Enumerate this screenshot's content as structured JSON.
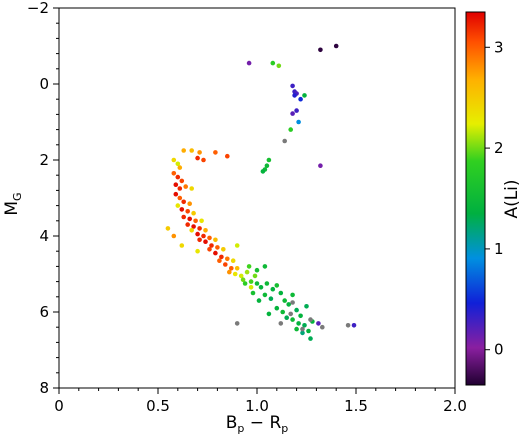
{
  "chart_data": {
    "type": "scatter",
    "xlabel_main": "B",
    "xlabel_sub1": "p",
    "xlabel_mid": " − R",
    "xlabel_sub2": "p",
    "ylabel_main": "M",
    "ylabel_sub": "G",
    "colorbar_label": "A(Li)",
    "xlim": [
      0,
      2.0
    ],
    "ylim": [
      8,
      -2
    ],
    "y_inverted": true,
    "x_ticks": [
      0,
      0.5,
      1.0,
      1.5,
      2.0
    ],
    "x_tick_labels": [
      "0",
      "0.5",
      "1.0",
      "1.5",
      "2.0"
    ],
    "y_ticks": [
      -2,
      0,
      2,
      4,
      6,
      8
    ],
    "y_tick_labels": [
      "−2",
      "0",
      "2",
      "4",
      "6",
      "8"
    ],
    "colorbar_range": [
      -0.35,
      3.35
    ],
    "colorbar_ticks": [
      0,
      1,
      2,
      3
    ],
    "colorbar_tick_labels": [
      "0",
      "1",
      "2",
      "3"
    ],
    "colormap": "rainbow (purple → blue → green → yellow → orange → red)",
    "no_li_color": "#7a7a7a",
    "grid": false,
    "points": [
      {
        "x": 1.4,
        "y": -1.0,
        "li": -0.3
      },
      {
        "x": 1.32,
        "y": -0.9,
        "li": -0.3
      },
      {
        "x": 0.96,
        "y": -0.55,
        "li": 0.1
      },
      {
        "x": 1.08,
        "y": -0.55,
        "li": 1.8
      },
      {
        "x": 1.11,
        "y": -0.48,
        "li": 2.0
      },
      {
        "x": 1.18,
        "y": 0.05,
        "li": 0.3
      },
      {
        "x": 1.19,
        "y": 0.2,
        "li": 0.3
      },
      {
        "x": 1.2,
        "y": 0.25,
        "li": 0.25
      },
      {
        "x": 1.19,
        "y": 0.3,
        "li": 0.4
      },
      {
        "x": 1.22,
        "y": 0.4,
        "li": 0.5
      },
      {
        "x": 1.24,
        "y": 0.3,
        "li": 1.4
      },
      {
        "x": 1.2,
        "y": 0.7,
        "li": 0.3
      },
      {
        "x": 1.18,
        "y": 0.78,
        "li": 0.2
      },
      {
        "x": 1.21,
        "y": 1.0,
        "li": 0.9
      },
      {
        "x": 1.17,
        "y": 1.2,
        "li": 1.8
      },
      {
        "x": 1.14,
        "y": 1.5,
        "li": null
      },
      {
        "x": 1.32,
        "y": 2.15,
        "li": 0.1
      },
      {
        "x": 1.06,
        "y": 2.0,
        "li": 1.6
      },
      {
        "x": 1.05,
        "y": 2.15,
        "li": 1.5
      },
      {
        "x": 1.04,
        "y": 2.25,
        "li": 1.5
      },
      {
        "x": 1.03,
        "y": 2.3,
        "li": 1.4
      },
      {
        "x": 0.63,
        "y": 1.75,
        "li": 2.7
      },
      {
        "x": 0.67,
        "y": 1.75,
        "li": 2.6
      },
      {
        "x": 0.71,
        "y": 1.8,
        "li": 2.8
      },
      {
        "x": 0.79,
        "y": 1.8,
        "li": 3.0
      },
      {
        "x": 0.85,
        "y": 1.9,
        "li": 3.1
      },
      {
        "x": 0.7,
        "y": 1.95,
        "li": 3.2
      },
      {
        "x": 0.73,
        "y": 2.0,
        "li": 3.1
      },
      {
        "x": 0.58,
        "y": 2.0,
        "li": 2.4
      },
      {
        "x": 0.6,
        "y": 2.1,
        "li": 2.2
      },
      {
        "x": 0.61,
        "y": 2.2,
        "li": 2.7
      },
      {
        "x": 0.58,
        "y": 2.35,
        "li": 3.0
      },
      {
        "x": 0.6,
        "y": 2.45,
        "li": 3.2
      },
      {
        "x": 0.62,
        "y": 2.55,
        "li": 3.1
      },
      {
        "x": 0.59,
        "y": 2.65,
        "li": 3.3
      },
      {
        "x": 0.61,
        "y": 2.75,
        "li": 3.2
      },
      {
        "x": 0.64,
        "y": 2.7,
        "li": 2.9
      },
      {
        "x": 0.67,
        "y": 2.75,
        "li": 2.4
      },
      {
        "x": 0.59,
        "y": 2.9,
        "li": 3.3
      },
      {
        "x": 0.61,
        "y": 3.0,
        "li": 3.0
      },
      {
        "x": 0.63,
        "y": 3.1,
        "li": 3.2
      },
      {
        "x": 0.66,
        "y": 3.15,
        "li": 2.8
      },
      {
        "x": 0.6,
        "y": 3.2,
        "li": 2.3
      },
      {
        "x": 0.62,
        "y": 3.3,
        "li": 3.3
      },
      {
        "x": 0.65,
        "y": 3.35,
        "li": 3.1
      },
      {
        "x": 0.68,
        "y": 3.4,
        "li": 2.5
      },
      {
        "x": 0.63,
        "y": 3.5,
        "li": 3.2
      },
      {
        "x": 0.66,
        "y": 3.55,
        "li": 3.3
      },
      {
        "x": 0.69,
        "y": 3.6,
        "li": 3.0
      },
      {
        "x": 0.72,
        "y": 3.6,
        "li": 2.3
      },
      {
        "x": 0.65,
        "y": 3.7,
        "li": 3.2
      },
      {
        "x": 0.68,
        "y": 3.75,
        "li": 3.3
      },
      {
        "x": 0.71,
        "y": 3.8,
        "li": 3.2
      },
      {
        "x": 0.74,
        "y": 3.85,
        "li": 2.7
      },
      {
        "x": 0.67,
        "y": 3.85,
        "li": 2.4
      },
      {
        "x": 0.7,
        "y": 3.95,
        "li": 3.3
      },
      {
        "x": 0.73,
        "y": 4.0,
        "li": 3.2
      },
      {
        "x": 0.76,
        "y": 4.05,
        "li": 3.0
      },
      {
        "x": 0.79,
        "y": 4.1,
        "li": 2.6
      },
      {
        "x": 0.71,
        "y": 4.1,
        "li": 3.2
      },
      {
        "x": 0.74,
        "y": 4.15,
        "li": 3.3
      },
      {
        "x": 0.77,
        "y": 4.25,
        "li": 3.2
      },
      {
        "x": 0.8,
        "y": 4.3,
        "li": 3.0
      },
      {
        "x": 0.83,
        "y": 4.35,
        "li": 2.5
      },
      {
        "x": 0.76,
        "y": 4.35,
        "li": 3.1
      },
      {
        "x": 0.79,
        "y": 4.45,
        "li": 3.3
      },
      {
        "x": 0.82,
        "y": 4.55,
        "li": 3.2
      },
      {
        "x": 0.85,
        "y": 4.6,
        "li": 2.9
      },
      {
        "x": 0.88,
        "y": 4.65,
        "li": 2.4
      },
      {
        "x": 0.81,
        "y": 4.65,
        "li": 3.0
      },
      {
        "x": 0.84,
        "y": 4.75,
        "li": 3.1
      },
      {
        "x": 0.87,
        "y": 4.85,
        "li": 3.0
      },
      {
        "x": 0.9,
        "y": 4.85,
        "li": 2.6
      },
      {
        "x": 0.86,
        "y": 4.95,
        "li": 2.8
      },
      {
        "x": 0.89,
        "y": 5.0,
        "li": 2.3
      },
      {
        "x": 0.92,
        "y": 5.05,
        "li": 2.2
      },
      {
        "x": 0.95,
        "y": 4.95,
        "li": 2.1
      },
      {
        "x": 0.93,
        "y": 5.15,
        "li": 2.0
      },
      {
        "x": 0.97,
        "y": 5.2,
        "li": 1.9
      },
      {
        "x": 0.99,
        "y": 5.05,
        "li": 2.0
      },
      {
        "x": 0.55,
        "y": 3.8,
        "li": 2.5
      },
      {
        "x": 0.58,
        "y": 4.0,
        "li": 2.8
      },
      {
        "x": 0.62,
        "y": 4.25,
        "li": 2.4
      },
      {
        "x": 0.7,
        "y": 4.4,
        "li": 2.3
      },
      {
        "x": 0.96,
        "y": 4.8,
        "li": 1.9
      },
      {
        "x": 0.9,
        "y": 4.25,
        "li": 2.2
      },
      {
        "x": 1.0,
        "y": 5.25,
        "li": 1.5
      },
      {
        "x": 1.02,
        "y": 5.35,
        "li": 1.4
      },
      {
        "x": 1.05,
        "y": 5.25,
        "li": 1.5
      },
      {
        "x": 1.08,
        "y": 5.4,
        "li": 1.4
      },
      {
        "x": 1.1,
        "y": 5.3,
        "li": 1.6
      },
      {
        "x": 1.12,
        "y": 5.5,
        "li": 1.4
      },
      {
        "x": 1.04,
        "y": 5.55,
        "li": 1.5
      },
      {
        "x": 1.07,
        "y": 5.65,
        "li": 1.3
      },
      {
        "x": 1.14,
        "y": 5.7,
        "li": 1.5
      },
      {
        "x": 1.16,
        "y": 5.8,
        "li": 1.4
      },
      {
        "x": 1.18,
        "y": 5.55,
        "li": 1.5
      },
      {
        "x": 1.2,
        "y": 5.95,
        "li": 1.3
      },
      {
        "x": 1.1,
        "y": 5.9,
        "li": 1.4
      },
      {
        "x": 1.13,
        "y": 6.0,
        "li": 1.5
      },
      {
        "x": 1.22,
        "y": 6.1,
        "li": 1.4
      },
      {
        "x": 1.15,
        "y": 6.15,
        "li": 1.3
      },
      {
        "x": 1.18,
        "y": 6.2,
        "li": 1.5
      },
      {
        "x": 1.21,
        "y": 6.3,
        "li": 1.4
      },
      {
        "x": 1.24,
        "y": 6.35,
        "li": 1.3
      },
      {
        "x": 1.26,
        "y": 6.5,
        "li": 1.4
      },
      {
        "x": 1.23,
        "y": 6.55,
        "li": 1.2
      },
      {
        "x": 1.27,
        "y": 6.7,
        "li": 1.3
      },
      {
        "x": 1.2,
        "y": 6.45,
        "li": 1.5
      },
      {
        "x": 1.28,
        "y": 6.25,
        "li": 1.4
      },
      {
        "x": 1.01,
        "y": 5.7,
        "li": 1.4
      },
      {
        "x": 1.25,
        "y": 5.85,
        "li": 1.3
      },
      {
        "x": 0.98,
        "y": 5.5,
        "li": 1.6
      },
      {
        "x": 1.06,
        "y": 6.05,
        "li": 1.4
      },
      {
        "x": 1.0,
        "y": 4.9,
        "li": 1.6
      },
      {
        "x": 1.04,
        "y": 4.8,
        "li": 1.5
      },
      {
        "x": 0.97,
        "y": 5.35,
        "li": 2.2
      },
      {
        "x": 0.94,
        "y": 5.25,
        "li": 1.8
      },
      {
        "x": 0.9,
        "y": 6.3,
        "li": null
      },
      {
        "x": 1.33,
        "y": 6.4,
        "li": null
      },
      {
        "x": 1.46,
        "y": 6.35,
        "li": null
      },
      {
        "x": 1.49,
        "y": 6.35,
        "li": 0.3
      },
      {
        "x": 1.17,
        "y": 6.05,
        "li": null
      },
      {
        "x": 1.23,
        "y": 6.45,
        "li": null
      },
      {
        "x": 1.27,
        "y": 6.2,
        "li": null
      },
      {
        "x": 1.12,
        "y": 6.3,
        "li": null
      },
      {
        "x": 1.31,
        "y": 6.3,
        "li": 0.2
      },
      {
        "x": 1.18,
        "y": 5.75,
        "li": null
      }
    ]
  }
}
